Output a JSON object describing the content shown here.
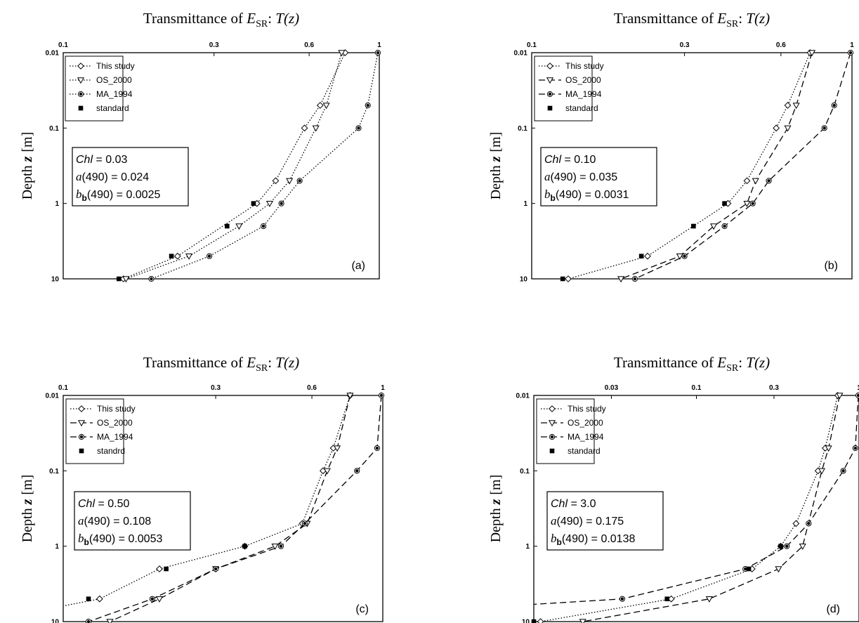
{
  "chart_data": [
    {
      "type": "line",
      "title": "Transmittance of E_SR: T(z)",
      "title_parts": {
        "prefix": "Transmittance of ",
        "e": "E",
        "esub": "SR",
        "colon": ": ",
        "t": "T",
        "z": "(z)"
      },
      "ylabel": "Depth z [m]",
      "ylabel_parts": {
        "depth": "Depth ",
        "z": "z",
        "unit": "[m]"
      },
      "x_scale": "log",
      "y_scale": "log",
      "y_inverted": true,
      "xlim": [
        0.1,
        1.0
      ],
      "ylim": [
        0.01,
        10
      ],
      "xticks": [
        {
          "value": 0.1,
          "label": "0.1"
        },
        {
          "value": 0.3,
          "label": "0.3"
        },
        {
          "value": 0.6,
          "label": "0.6"
        },
        {
          "value": 1.0,
          "label": "1"
        }
      ],
      "yticks": [
        {
          "value": 0.01,
          "label": "0.01"
        },
        {
          "value": 0.1,
          "label": "0.1"
        },
        {
          "value": 1,
          "label": "1"
        },
        {
          "value": 10,
          "label": "10"
        }
      ],
      "panel_label": "(a)",
      "params": {
        "chl": "0.03",
        "a490": "0.024",
        "bb490": "0.0025"
      },
      "series": [
        {
          "name": "This study",
          "marker": "diamond",
          "dash": "dot",
          "points": [
            [
              0.78,
              0.01
            ],
            [
              0.65,
              0.05
            ],
            [
              0.58,
              0.1
            ],
            [
              0.47,
              0.5
            ],
            [
              0.41,
              1.0
            ],
            [
              0.23,
              5.0
            ],
            [
              0.155,
              10.0
            ]
          ]
        },
        {
          "name": "OS_2000",
          "marker": "triangle-down",
          "dash": "dot",
          "points": [
            [
              0.76,
              0.01
            ],
            [
              0.68,
              0.05
            ],
            [
              0.63,
              0.1
            ],
            [
              0.52,
              0.5
            ],
            [
              0.45,
              1.0
            ],
            [
              0.36,
              2.0
            ],
            [
              0.25,
              5.0
            ],
            [
              0.158,
              10.0
            ]
          ]
        },
        {
          "name": "MA_1994",
          "marker": "circle-dot",
          "dash": "dot",
          "points": [
            [
              0.99,
              0.01
            ],
            [
              0.92,
              0.05
            ],
            [
              0.86,
              0.1
            ],
            [
              0.56,
              0.5
            ],
            [
              0.49,
              1.0
            ],
            [
              0.43,
              2.0
            ],
            [
              0.29,
              5.0
            ],
            [
              0.19,
              10.0
            ]
          ]
        },
        {
          "name": "standard",
          "marker": "square",
          "dash": "none",
          "points": [
            [
              0.4,
              1.0
            ],
            [
              0.33,
              2.0
            ],
            [
              0.22,
              5.0
            ],
            [
              0.15,
              10.0
            ]
          ]
        }
      ]
    },
    {
      "type": "line",
      "title": "Transmittance of E_SR: T(z)",
      "title_parts": {
        "prefix": "Transmittance of ",
        "e": "E",
        "esub": "SR",
        "colon": ": ",
        "t": "T",
        "z": "(z)"
      },
      "ylabel": "Depth z [m]",
      "ylabel_parts": {
        "depth": "Depth ",
        "z": "z",
        "unit": "[m]"
      },
      "x_scale": "log",
      "y_scale": "log",
      "y_inverted": true,
      "xlim": [
        0.1,
        1.0
      ],
      "ylim": [
        0.01,
        10
      ],
      "xticks": [
        {
          "value": 0.1,
          "label": "0.1"
        },
        {
          "value": 0.3,
          "label": "0.3"
        },
        {
          "value": 0.6,
          "label": "0.6"
        },
        {
          "value": 1.0,
          "label": "1"
        }
      ],
      "yticks": [
        {
          "value": 0.01,
          "label": "0.01"
        },
        {
          "value": 0.1,
          "label": "0.1"
        },
        {
          "value": 1,
          "label": "1"
        },
        {
          "value": 10,
          "label": "10"
        }
      ],
      "panel_label": "(b)",
      "params": {
        "chl": "0.10",
        "a490": "0.035",
        "bb490": "0.0031"
      },
      "series": [
        {
          "name": "This study",
          "marker": "diamond",
          "dash": "dot",
          "points": [
            [
              0.74,
              0.01
            ],
            [
              0.63,
              0.05
            ],
            [
              0.58,
              0.1
            ],
            [
              0.47,
              0.5
            ],
            [
              0.41,
              1.0
            ],
            [
              0.23,
              5.0
            ],
            [
              0.13,
              10.0
            ]
          ]
        },
        {
          "name": "OS_2000",
          "marker": "triangle-down",
          "dash": "dash",
          "points": [
            [
              0.75,
              0.01
            ],
            [
              0.67,
              0.05
            ],
            [
              0.63,
              0.1
            ],
            [
              0.5,
              0.5
            ],
            [
              0.47,
              1.0
            ],
            [
              0.37,
              2.0
            ],
            [
              0.29,
              5.0
            ],
            [
              0.19,
              10.0
            ]
          ]
        },
        {
          "name": "MA_1994",
          "marker": "circle-dot",
          "dash": "dash",
          "points": [
            [
              0.99,
              0.01
            ],
            [
              0.88,
              0.05
            ],
            [
              0.82,
              0.1
            ],
            [
              0.55,
              0.5
            ],
            [
              0.49,
              1.0
            ],
            [
              0.4,
              2.0
            ],
            [
              0.3,
              5.0
            ],
            [
              0.21,
              10.0
            ]
          ]
        },
        {
          "name": "standard",
          "marker": "square",
          "dash": "none",
          "points": [
            [
              0.4,
              1.0
            ],
            [
              0.32,
              2.0
            ],
            [
              0.22,
              5.0
            ],
            [
              0.125,
              10.0
            ]
          ]
        }
      ]
    },
    {
      "type": "line",
      "title": "Transmittance of E_SR: T(z)",
      "title_parts": {
        "prefix": "Transmittance of ",
        "e": "E",
        "esub": "SR",
        "colon": ": ",
        "t": "T",
        "z": "(z)"
      },
      "ylabel": "Depth z [m]",
      "ylabel_parts": {
        "depth": "Depth ",
        "z": "z",
        "unit": "[m]"
      },
      "x_scale": "log",
      "y_scale": "log",
      "y_inverted": true,
      "xlim": [
        0.1,
        1.0
      ],
      "ylim": [
        0.01,
        10
      ],
      "xticks": [
        {
          "value": 0.1,
          "label": "0.1"
        },
        {
          "value": 0.3,
          "label": "0.3"
        },
        {
          "value": 0.6,
          "label": "0.6"
        },
        {
          "value": 1.0,
          "label": "1"
        }
      ],
      "yticks": [
        {
          "value": 0.01,
          "label": "0.01"
        },
        {
          "value": 0.1,
          "label": "0.1"
        },
        {
          "value": 1,
          "label": "1"
        },
        {
          "value": 10,
          "label": "10"
        }
      ],
      "panel_label": "(c)",
      "params": {
        "chl": "0.50",
        "a490": "0.108",
        "bb490": "0.0053"
      },
      "series": [
        {
          "name": "This study",
          "marker": "diamond",
          "dash": "dot",
          "points": [
            [
              0.1,
              6.2
            ],
            [
              0.13,
              5.0
            ],
            [
              0.2,
              2.0
            ],
            [
              0.37,
              1.0
            ],
            [
              0.56,
              0.5
            ],
            [
              0.65,
              0.1
            ],
            [
              0.7,
              0.05
            ],
            [
              0.79,
              0.01
            ]
          ]
        },
        {
          "name": "OS_2000",
          "marker": "triangle-down",
          "dash": "dash",
          "points": [
            [
              0.14,
              10.0
            ],
            [
              0.2,
              5.0
            ],
            [
              0.3,
              2.0
            ],
            [
              0.46,
              1.0
            ],
            [
              0.58,
              0.5
            ],
            [
              0.67,
              0.1
            ],
            [
              0.72,
              0.05
            ],
            [
              0.79,
              0.01
            ]
          ]
        },
        {
          "name": "MA_1994",
          "marker": "circle-dot",
          "dash": "dash",
          "points": [
            [
              0.12,
              10.0
            ],
            [
              0.19,
              5.0
            ],
            [
              0.3,
              2.0
            ],
            [
              0.48,
              1.0
            ],
            [
              0.57,
              0.5
            ],
            [
              0.83,
              0.1
            ],
            [
              0.96,
              0.05
            ],
            [
              0.99,
              0.01
            ]
          ]
        },
        {
          "name": "standrd",
          "marker": "square",
          "dash": "none",
          "points": [
            [
              0.12,
              5.0
            ],
            [
              0.21,
              2.0
            ],
            [
              0.37,
              1.0
            ]
          ]
        }
      ]
    },
    {
      "type": "line",
      "title": "Transmittance of E_SR: T(z)",
      "title_parts": {
        "prefix": "Transmittance of ",
        "e": "E",
        "esub": "SR",
        "colon": ": ",
        "t": "T",
        "z": "(z)"
      },
      "ylabel": "Depth z [m]",
      "ylabel_parts": {
        "depth": "Depth ",
        "z": "z",
        "unit": "[m]"
      },
      "x_scale": "log",
      "y_scale": "log",
      "y_inverted": true,
      "xlim": [
        0.01,
        1.0
      ],
      "ylim": [
        0.01,
        10
      ],
      "xticks": [
        {
          "value": 0.03,
          "label": "0.03"
        },
        {
          "value": 0.1,
          "label": "0.1"
        },
        {
          "value": 0.3,
          "label": "0.3"
        },
        {
          "value": 1.0,
          "label": "1"
        }
      ],
      "yticks": [
        {
          "value": 0.01,
          "label": "0.01"
        },
        {
          "value": 0.1,
          "label": "0.1"
        },
        {
          "value": 1,
          "label": "1"
        },
        {
          "value": 10,
          "label": "10"
        }
      ],
      "panel_label": "(d)",
      "params": {
        "chl": "3.0",
        "a490": "0.175",
        "bb490": "0.0138"
      },
      "series": [
        {
          "name": "This study",
          "marker": "diamond",
          "dash": "dot",
          "points": [
            [
              0.011,
              10.0
            ],
            [
              0.07,
              5.0
            ],
            [
              0.22,
              2.0
            ],
            [
              0.33,
              1.0
            ],
            [
              0.41,
              0.5
            ],
            [
              0.56,
              0.1
            ],
            [
              0.62,
              0.05
            ],
            [
              0.74,
              0.01
            ]
          ]
        },
        {
          "name": "OS_2000",
          "marker": "triangle-down",
          "dash": "dash",
          "points": [
            [
              0.02,
              10.0
            ],
            [
              0.12,
              5.0
            ],
            [
              0.32,
              2.0
            ],
            [
              0.45,
              1.0
            ],
            [
              0.59,
              0.1
            ],
            [
              0.65,
              0.05
            ],
            [
              0.76,
              0.01
            ]
          ]
        },
        {
          "name": "MA_1994",
          "marker": "circle-dot",
          "dash": "dash",
          "points": [
            [
              0.01,
              5.9
            ],
            [
              0.035,
              5.0
            ],
            [
              0.2,
              2.0
            ],
            [
              0.36,
              1.0
            ],
            [
              0.49,
              0.5
            ],
            [
              0.8,
              0.1
            ],
            [
              0.95,
              0.05
            ],
            [
              0.99,
              0.01
            ]
          ]
        },
        {
          "name": "standard",
          "marker": "square",
          "dash": "none",
          "points": [
            [
              0.01,
              10.0
            ],
            [
              0.066,
              5.0
            ],
            [
              0.21,
              2.0
            ],
            [
              0.33,
              1.0
            ]
          ]
        }
      ]
    }
  ]
}
